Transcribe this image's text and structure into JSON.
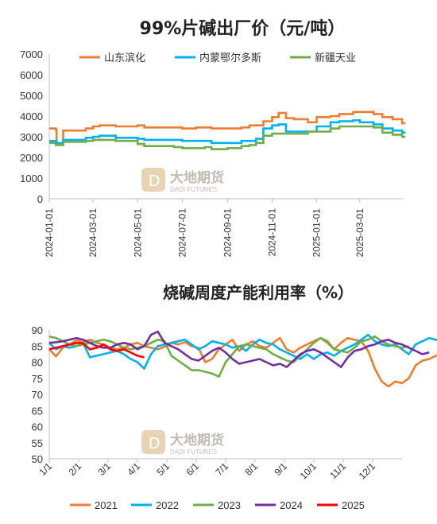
{
  "chart_data": [
    {
      "type": "line",
      "title": "99%片碱出厂价（元/吨）",
      "ylim": [
        0,
        7000
      ],
      "yticks": [
        "0",
        "1000",
        "2000",
        "3000",
        "4000",
        "5000",
        "6000",
        "7000"
      ],
      "xticks": [
        "2024-01-01",
        "2024-03-01",
        "2024-05-01",
        "2024-07-01",
        "2024-09-01",
        "2024-11-01",
        "2025-01-01",
        "2025-03-01"
      ],
      "x": [
        "2024-01-01",
        "2024-01-10",
        "2024-01-11",
        "2024-01-20",
        "2024-02-20",
        "2024-03-01",
        "2024-03-10",
        "2024-04-01",
        "2024-05-01",
        "2024-05-10",
        "2024-06-01",
        "2024-06-20",
        "2024-07-01",
        "2024-07-20",
        "2024-08-01",
        "2024-08-10",
        "2024-09-01",
        "2024-09-20",
        "2024-10-01",
        "2024-10-10",
        "2024-10-20",
        "2024-11-01",
        "2024-11-10",
        "2024-11-20",
        "2024-12-01",
        "2024-12-20",
        "2025-01-01",
        "2025-01-20",
        "2025-02-01",
        "2025-02-20",
        "2025-03-01",
        "2025-03-20",
        "2025-04-01",
        "2025-04-15",
        "2025-04-28"
      ],
      "series": [
        {
          "name": "山东滨化",
          "color": "#ED7D31",
          "values": [
            3400,
            3350,
            2700,
            3300,
            3400,
            3500,
            3550,
            3500,
            3550,
            3450,
            3450,
            3450,
            3400,
            3450,
            3450,
            3400,
            3400,
            3450,
            3550,
            3550,
            3750,
            3950,
            4150,
            3900,
            3850,
            3700,
            3950,
            4000,
            4100,
            4200,
            4200,
            4100,
            3950,
            3850,
            3650
          ]
        },
        {
          "name": "内蒙鄂尔多斯",
          "color": "#00B0F0",
          "values": [
            2800,
            2750,
            2700,
            2850,
            2950,
            3000,
            3050,
            2950,
            2900,
            2850,
            2850,
            2850,
            2800,
            2800,
            2800,
            2700,
            2700,
            2800,
            2800,
            2900,
            3400,
            3550,
            3600,
            3250,
            3250,
            3250,
            3500,
            3700,
            3750,
            3800,
            3700,
            3600,
            3400,
            3300,
            3200
          ]
        },
        {
          "name": "新疆天业",
          "color": "#70AD47",
          "values": [
            2700,
            2600,
            2600,
            2750,
            2800,
            2850,
            2850,
            2800,
            2650,
            2550,
            2550,
            2500,
            2450,
            2450,
            2500,
            2400,
            2450,
            2550,
            2600,
            2700,
            3050,
            3150,
            3150,
            3150,
            3150,
            3250,
            3250,
            3400,
            3500,
            3500,
            3500,
            3450,
            3200,
            3100,
            3000
          ]
        }
      ]
    },
    {
      "type": "line",
      "title": "烧碱周度产能利用率（%）",
      "ylim": [
        50,
        90
      ],
      "yticks": [
        "50",
        "55",
        "60",
        "65",
        "70",
        "75",
        "80",
        "85",
        "90"
      ],
      "xticks": [
        "1/1",
        "2/1",
        "3/1",
        "4/1",
        "5/1",
        "6/1",
        "7/1",
        "8/1",
        "9/1",
        "10/1",
        "11/1",
        "12/1"
      ],
      "series": [
        {
          "name": "2021",
          "color": "#ED7D31",
          "values": [
            84.0,
            81.8,
            84.5,
            85.5,
            86.8,
            86.2,
            87.0,
            86.0,
            85.5,
            84.5,
            84.0,
            84.5,
            85.5,
            86.0,
            85.0,
            84.5,
            84.0,
            84.8,
            86.0,
            85.5,
            86.2,
            85.0,
            84.5,
            80.0,
            81.0,
            84.0,
            85.5,
            87.0,
            83.5,
            85.5,
            86.5,
            85.0,
            84.5,
            86.0,
            87.5,
            84.0,
            83.0,
            84.5,
            85.5,
            86.5,
            87.5,
            86.0,
            84.0,
            86.0,
            87.5,
            87.0,
            86.5,
            83.5,
            78.0,
            74.0,
            72.5,
            74.0,
            73.5,
            75.0,
            79.0,
            80.5,
            81.0,
            82.0,
            82.5,
            82.0,
            81.5,
            82.0,
            83.0,
            83.5
          ]
        },
        {
          "name": "2022",
          "color": "#00B0F0",
          "values": [
            86.0,
            84.0,
            85.0,
            84.5,
            85.0,
            86.0,
            81.5,
            82.0,
            82.5,
            83.0,
            83.5,
            82.5,
            81.0,
            80.0,
            78.0,
            82.5,
            85.0,
            85.5,
            86.0,
            86.5,
            87.0,
            85.5,
            84.0,
            85.0,
            86.5,
            86.0,
            85.5,
            84.5,
            85.0,
            83.5,
            85.5,
            87.0,
            86.0,
            85.5,
            84.0,
            83.0,
            82.0,
            81.0,
            82.5,
            81.0,
            82.5,
            83.0,
            82.0,
            83.5,
            84.5,
            85.5,
            87.0,
            88.5,
            86.5,
            85.5,
            85.0,
            85.5,
            84.0,
            82.5,
            85.5,
            86.5,
            87.5,
            87.0,
            86.0,
            85.5,
            86.0,
            87.0,
            88.5
          ]
        },
        {
          "name": "2023",
          "color": "#70AD47",
          "values": [
            88.0,
            87.5,
            86.5,
            85.5,
            85.0,
            85.5,
            86.0,
            86.5,
            87.0,
            86.5,
            85.5,
            84.5,
            84.0,
            84.5,
            85.0,
            86.0,
            87.0,
            86.5,
            82.0,
            80.5,
            79.0,
            77.5,
            77.5,
            77.0,
            76.5,
            75.5,
            80.0,
            82.5,
            85.0,
            85.5,
            85.0,
            84.5,
            84.0,
            82.5,
            81.5,
            80.5,
            80.0,
            82.0,
            84.0,
            86.0,
            87.5,
            86.5,
            84.0,
            83.5,
            83.0,
            84.5,
            86.5,
            87.0,
            88.0,
            86.5,
            85.5,
            85.0,
            84.5,
            85.0
          ]
        },
        {
          "name": "2024",
          "color": "#7030A0",
          "values": [
            86.0,
            86.2,
            86.5,
            87.0,
            87.5,
            87.0,
            86.0,
            85.0,
            84.5,
            84.5,
            85.5,
            86.0,
            85.5,
            84.0,
            85.0,
            88.5,
            89.5,
            86.0,
            85.0,
            84.0,
            82.5,
            81.0,
            80.5,
            82.0,
            83.5,
            84.5,
            83.0,
            81.0,
            79.5,
            80.0,
            80.5,
            81.0,
            80.0,
            79.0,
            79.5,
            78.5,
            80.5,
            82.5,
            83.5,
            84.0,
            83.0,
            81.5,
            80.0,
            78.5,
            81.5,
            83.5,
            84.0,
            85.0,
            85.5,
            86.5,
            87.0,
            86.0,
            85.5,
            84.5,
            83.5,
            82.5,
            83.0
          ]
        },
        {
          "name": "2025",
          "color": "#FF0000",
          "values": [
            84.0,
            84.5,
            85.0,
            85.5,
            86.0,
            85.8,
            84.0,
            84.5,
            85.5,
            84.0,
            83.5,
            84.0,
            83.0,
            82.0,
            81.5
          ]
        }
      ]
    }
  ]
}
